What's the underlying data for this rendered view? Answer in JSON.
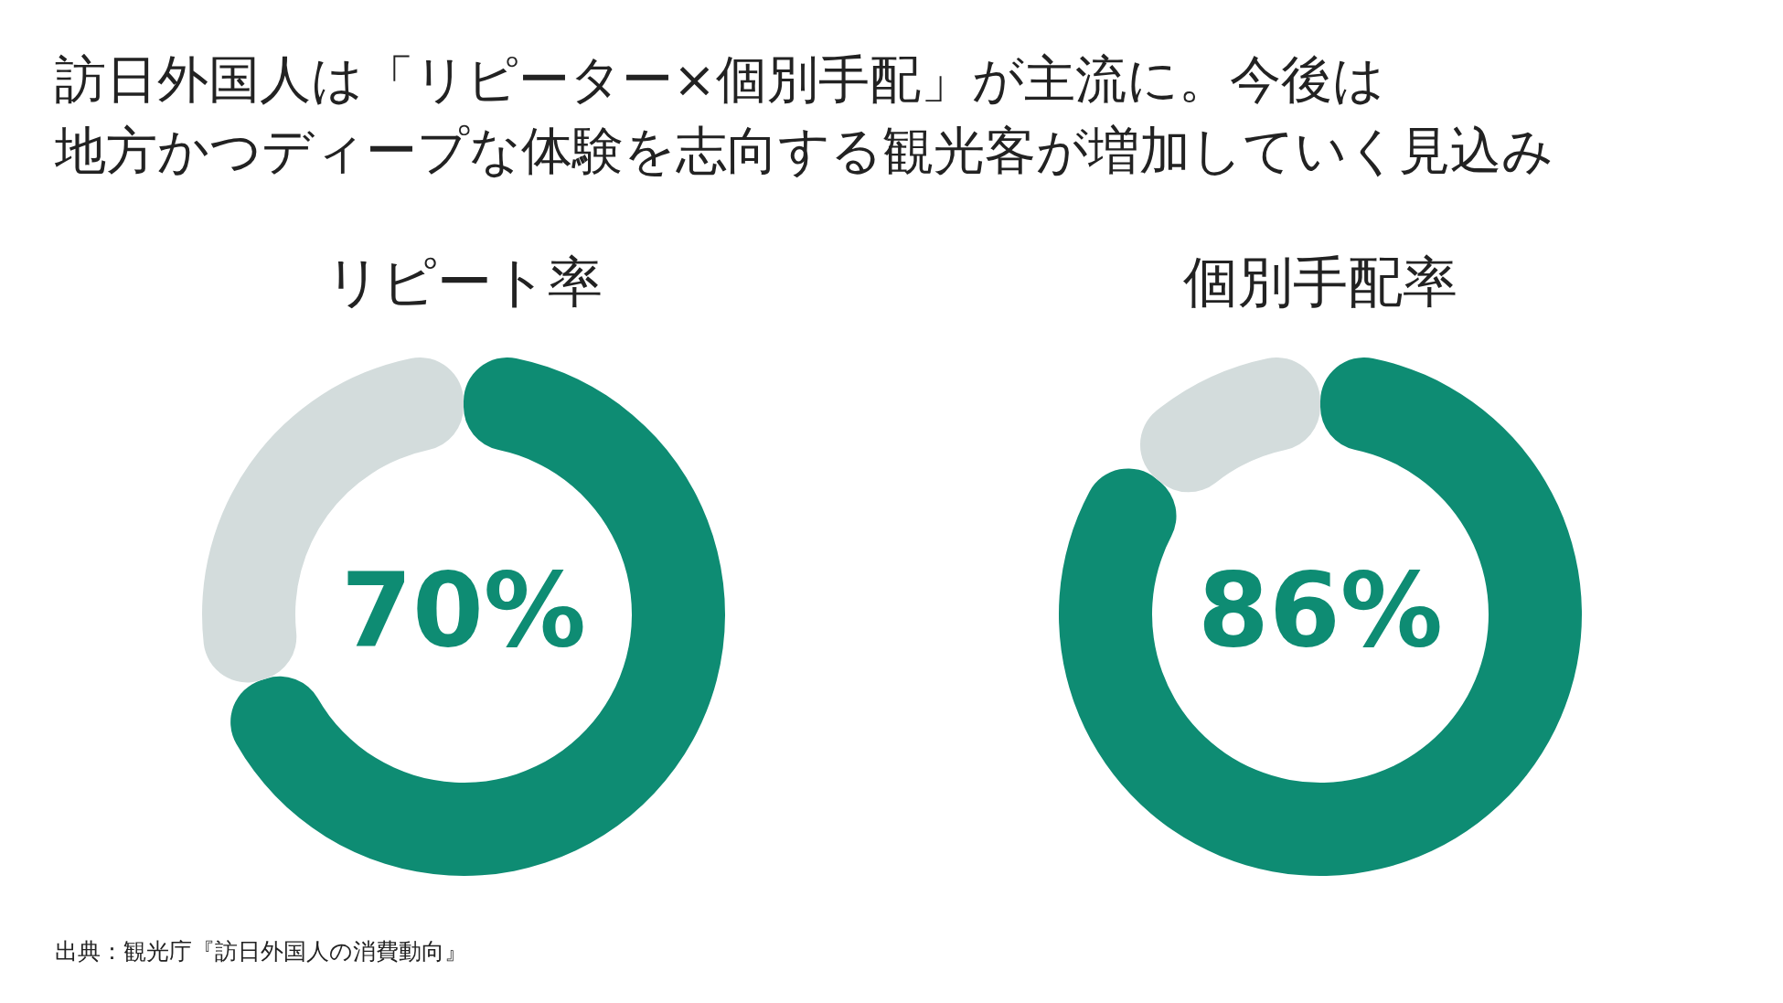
{
  "chart_data": [
    {
      "type": "other",
      "title": "訪日外国人は「リピーター×個別手配」が主流に。今後は",
      "subtitle": "地方かつディープな体験を志向する観光客が増加していく見込み",
      "annotations": [
        "出典：観光庁『訪日外国人の消費動向』"
      ]
    },
    {
      "type": "donut",
      "title": "リピート率",
      "categories": [
        null,
        null
      ],
      "values": [
        70,
        30
      ],
      "colors": [
        "#0e8c73",
        "#d3dcdc"
      ],
      "value_labels": [
        "70%",
        null
      ]
    },
    {
      "type": "donut",
      "title": "個別手配率",
      "categories": [
        null,
        null
      ],
      "values": [
        86,
        14
      ],
      "colors": [
        "#0e8c73",
        "#d3dcdc"
      ],
      "value_labels": [
        "86%",
        null
      ]
    }
  ]
}
